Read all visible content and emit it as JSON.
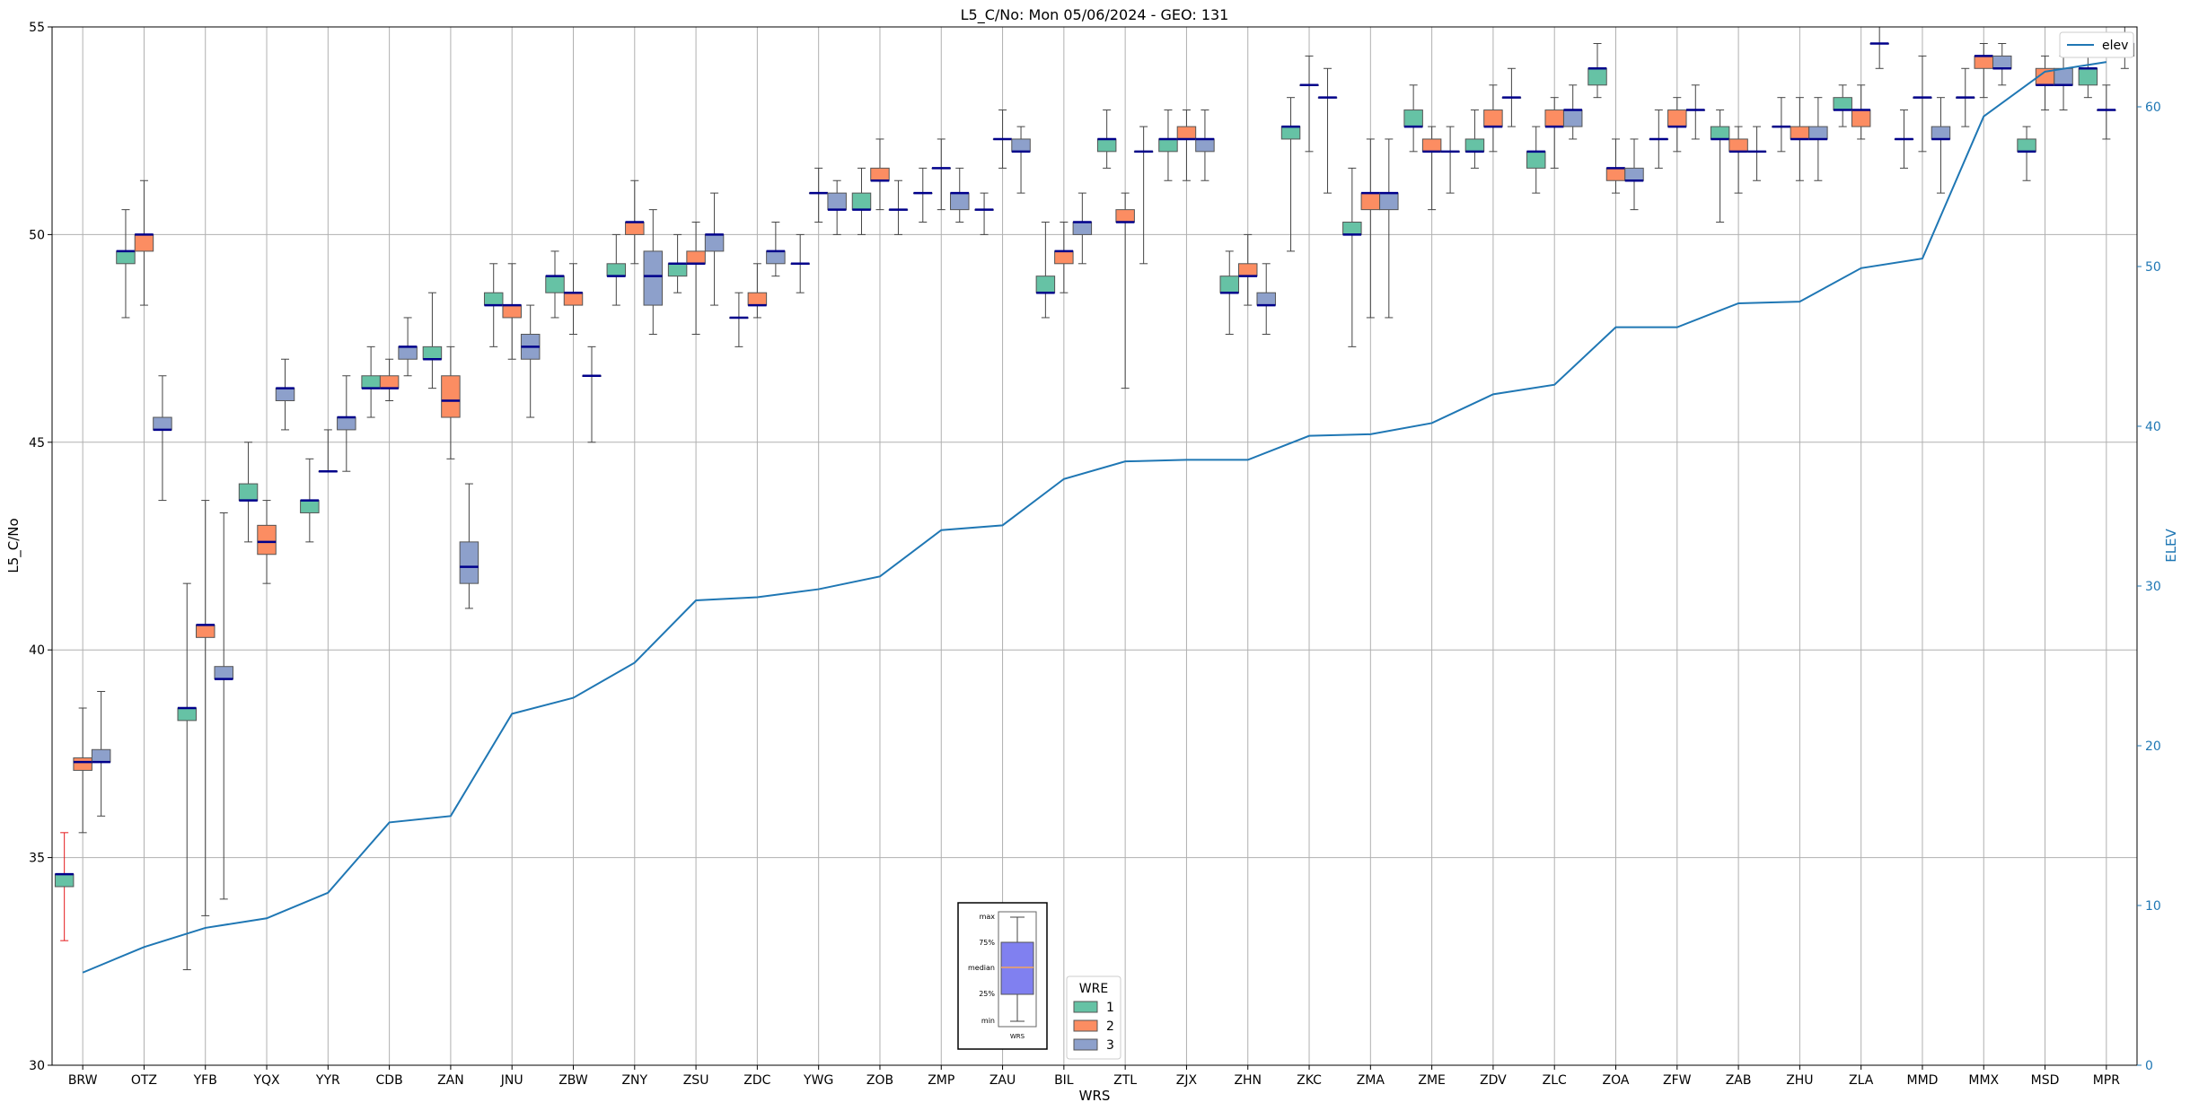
{
  "chart_data": {
    "type": "box",
    "title": "L5_C/No: Mon 05/06/2024 - GEO: 131",
    "xlabel": "WRS",
    "ylabel": "L5_C/No",
    "y2label": "ELEV",
    "ylim": [
      30,
      55
    ],
    "y2lim": [
      0,
      65
    ],
    "yticks": [
      30,
      35,
      40,
      45,
      50,
      55
    ],
    "y2ticks": [
      0,
      10,
      20,
      30,
      40,
      50,
      60
    ],
    "grid": true,
    "colors": {
      "1": "#66c2a5",
      "2": "#fc8d62",
      "3": "#8da0cb",
      "median": "#00008b",
      "elev": "#1f77b4",
      "outlier_whisker": "#e41a1c"
    },
    "categories": [
      "BRW",
      "OTZ",
      "YFB",
      "YQX",
      "YYR",
      "CDB",
      "ZAN",
      "JNU",
      "ZBW",
      "ZNY",
      "ZSU",
      "ZDC",
      "YWG",
      "ZOB",
      "ZMP",
      "ZAU",
      "BIL",
      "ZTL",
      "ZJX",
      "ZHN",
      "ZKC",
      "ZMA",
      "ZME",
      "ZDV",
      "ZLC",
      "ZOA",
      "ZFW",
      "ZAB",
      "ZHU",
      "ZLA",
      "MMD",
      "MMX",
      "MSD",
      "MPR"
    ],
    "legend": {
      "title": "WRE",
      "entries": [
        "1",
        "2",
        "3"
      ]
    },
    "elev_legend": "elev",
    "elev": [
      5.8,
      7.4,
      8.6,
      9.2,
      10.8,
      15.2,
      15.6,
      22.0,
      23.0,
      25.2,
      29.1,
      29.3,
      29.8,
      30.6,
      33.5,
      33.8,
      36.7,
      37.8,
      37.9,
      37.9,
      39.4,
      39.5,
      40.2,
      42.0,
      42.6,
      46.2,
      46.2,
      47.7,
      47.8,
      49.9,
      50.5,
      59.4,
      62.2,
      62.8
    ],
    "boxes": [
      {
        "cat": "BRW",
        "wre": 1,
        "min": 33.0,
        "q1": 34.3,
        "med": 34.6,
        "q3": 34.6,
        "max": 35.6,
        "red": true
      },
      {
        "cat": "BRW",
        "wre": 2,
        "min": 35.6,
        "q1": 37.1,
        "med": 37.3,
        "q3": 37.4,
        "max": 38.6
      },
      {
        "cat": "BRW",
        "wre": 3,
        "min": 36.0,
        "q1": 37.3,
        "med": 37.3,
        "q3": 37.6,
        "max": 39.0
      },
      {
        "cat": "OTZ",
        "wre": 1,
        "min": 48.0,
        "q1": 49.3,
        "med": 49.6,
        "q3": 49.6,
        "max": 50.6
      },
      {
        "cat": "OTZ",
        "wre": 2,
        "min": 48.3,
        "q1": 49.6,
        "med": 50.0,
        "q3": 50.0,
        "max": 51.3
      },
      {
        "cat": "OTZ",
        "wre": 3,
        "min": 43.6,
        "q1": 45.3,
        "med": 45.3,
        "q3": 45.6,
        "max": 46.6
      },
      {
        "cat": "YFB",
        "wre": 1,
        "min": 32.3,
        "q1": 38.3,
        "med": 38.6,
        "q3": 38.6,
        "max": 41.6
      },
      {
        "cat": "YFB",
        "wre": 2,
        "min": 33.6,
        "q1": 40.3,
        "med": 40.6,
        "q3": 40.6,
        "max": 43.6
      },
      {
        "cat": "YFB",
        "wre": 3,
        "min": 34.0,
        "q1": 39.3,
        "med": 39.3,
        "q3": 39.6,
        "max": 43.3
      },
      {
        "cat": "YQX",
        "wre": 1,
        "min": 42.6,
        "q1": 43.6,
        "med": 43.6,
        "q3": 44.0,
        "max": 45.0
      },
      {
        "cat": "YQX",
        "wre": 2,
        "min": 41.6,
        "q1": 42.3,
        "med": 42.6,
        "q3": 43.0,
        "max": 43.6
      },
      {
        "cat": "YQX",
        "wre": 3,
        "min": 45.3,
        "q1": 46.0,
        "med": 46.3,
        "q3": 46.3,
        "max": 47.0
      },
      {
        "cat": "YYR",
        "wre": 1,
        "min": 42.6,
        "q1": 43.3,
        "med": 43.6,
        "q3": 43.6,
        "max": 44.6
      },
      {
        "cat": "YYR",
        "wre": 2,
        "min": 44.3,
        "q1": 44.3,
        "med": 44.3,
        "q3": 44.3,
        "max": 45.3
      },
      {
        "cat": "YYR",
        "wre": 3,
        "min": 44.3,
        "q1": 45.3,
        "med": 45.6,
        "q3": 45.6,
        "max": 46.6
      },
      {
        "cat": "CDB",
        "wre": 1,
        "min": 45.6,
        "q1": 46.3,
        "med": 46.3,
        "q3": 46.6,
        "max": 47.3
      },
      {
        "cat": "CDB",
        "wre": 2,
        "min": 46.0,
        "q1": 46.3,
        "med": 46.3,
        "q3": 46.6,
        "max": 47.0
      },
      {
        "cat": "CDB",
        "wre": 3,
        "min": 46.6,
        "q1": 47.0,
        "med": 47.3,
        "q3": 47.3,
        "max": 48.0
      },
      {
        "cat": "ZAN",
        "wre": 1,
        "min": 46.3,
        "q1": 47.0,
        "med": 47.0,
        "q3": 47.3,
        "max": 48.6
      },
      {
        "cat": "ZAN",
        "wre": 2,
        "min": 44.6,
        "q1": 45.6,
        "med": 46.0,
        "q3": 46.6,
        "max": 47.3
      },
      {
        "cat": "ZAN",
        "wre": 3,
        "min": 41.0,
        "q1": 41.6,
        "med": 42.0,
        "q3": 42.6,
        "max": 44.0
      },
      {
        "cat": "JNU",
        "wre": 1,
        "min": 47.3,
        "q1": 48.3,
        "med": 48.3,
        "q3": 48.6,
        "max": 49.3
      },
      {
        "cat": "JNU",
        "wre": 2,
        "min": 47.0,
        "q1": 48.0,
        "med": 48.3,
        "q3": 48.3,
        "max": 49.3
      },
      {
        "cat": "JNU",
        "wre": 3,
        "min": 45.6,
        "q1": 47.0,
        "med": 47.3,
        "q3": 47.6,
        "max": 48.3
      },
      {
        "cat": "ZBW",
        "wre": 1,
        "min": 48.0,
        "q1": 48.6,
        "med": 49.0,
        "q3": 49.0,
        "max": 49.6
      },
      {
        "cat": "ZBW",
        "wre": 2,
        "min": 47.6,
        "q1": 48.3,
        "med": 48.6,
        "q3": 48.6,
        "max": 49.3
      },
      {
        "cat": "ZBW",
        "wre": 3,
        "min": 45.0,
        "q1": 46.6,
        "med": 46.6,
        "q3": 46.6,
        "max": 47.3
      },
      {
        "cat": "ZNY",
        "wre": 1,
        "min": 48.3,
        "q1": 49.0,
        "med": 49.0,
        "q3": 49.3,
        "max": 50.0
      },
      {
        "cat": "ZNY",
        "wre": 2,
        "min": 49.3,
        "q1": 50.0,
        "med": 50.3,
        "q3": 50.3,
        "max": 51.3
      },
      {
        "cat": "ZNY",
        "wre": 3,
        "min": 47.6,
        "q1": 48.3,
        "med": 49.0,
        "q3": 49.6,
        "max": 50.6
      },
      {
        "cat": "ZSU",
        "wre": 1,
        "min": 48.6,
        "q1": 49.0,
        "med": 49.3,
        "q3": 49.3,
        "max": 50.0
      },
      {
        "cat": "ZSU",
        "wre": 2,
        "min": 47.6,
        "q1": 49.3,
        "med": 49.3,
        "q3": 49.6,
        "max": 50.3
      },
      {
        "cat": "ZSU",
        "wre": 3,
        "min": 48.3,
        "q1": 49.6,
        "med": 50.0,
        "q3": 50.0,
        "max": 51.0
      },
      {
        "cat": "ZDC",
        "wre": 1,
        "min": 47.3,
        "q1": 48.0,
        "med": 48.0,
        "q3": 48.0,
        "max": 48.6
      },
      {
        "cat": "ZDC",
        "wre": 2,
        "min": 48.0,
        "q1": 48.3,
        "med": 48.3,
        "q3": 48.6,
        "max": 49.3
      },
      {
        "cat": "ZDC",
        "wre": 3,
        "min": 49.0,
        "q1": 49.3,
        "med": 49.6,
        "q3": 49.6,
        "max": 50.3
      },
      {
        "cat": "YWG",
        "wre": 1,
        "min": 48.6,
        "q1": 49.3,
        "med": 49.3,
        "q3": 49.3,
        "max": 50.0
      },
      {
        "cat": "YWG",
        "wre": 2,
        "min": 50.3,
        "q1": 51.0,
        "med": 51.0,
        "q3": 51.0,
        "max": 51.6
      },
      {
        "cat": "YWG",
        "wre": 3,
        "min": 50.0,
        "q1": 50.6,
        "med": 50.6,
        "q3": 51.0,
        "max": 51.3
      },
      {
        "cat": "ZOB",
        "wre": 1,
        "min": 50.0,
        "q1": 50.6,
        "med": 50.6,
        "q3": 51.0,
        "max": 51.6
      },
      {
        "cat": "ZOB",
        "wre": 2,
        "min": 50.6,
        "q1": 51.3,
        "med": 51.3,
        "q3": 51.6,
        "max": 52.3
      },
      {
        "cat": "ZOB",
        "wre": 3,
        "min": 50.0,
        "q1": 50.6,
        "med": 50.6,
        "q3": 50.6,
        "max": 51.3
      },
      {
        "cat": "ZMP",
        "wre": 1,
        "min": 50.3,
        "q1": 51.0,
        "med": 51.0,
        "q3": 51.0,
        "max": 51.6
      },
      {
        "cat": "ZMP",
        "wre": 2,
        "min": 50.6,
        "q1": 51.6,
        "med": 51.6,
        "q3": 51.6,
        "max": 52.3
      },
      {
        "cat": "ZMP",
        "wre": 3,
        "min": 50.3,
        "q1": 50.6,
        "med": 51.0,
        "q3": 51.0,
        "max": 51.6
      },
      {
        "cat": "ZAU",
        "wre": 1,
        "min": 50.0,
        "q1": 50.6,
        "med": 50.6,
        "q3": 50.6,
        "max": 51.0
      },
      {
        "cat": "ZAU",
        "wre": 2,
        "min": 51.6,
        "q1": 52.3,
        "med": 52.3,
        "q3": 52.3,
        "max": 53.0
      },
      {
        "cat": "ZAU",
        "wre": 3,
        "min": 51.0,
        "q1": 52.0,
        "med": 52.0,
        "q3": 52.3,
        "max": 52.6
      },
      {
        "cat": "BIL",
        "wre": 1,
        "min": 48.0,
        "q1": 48.6,
        "med": 48.6,
        "q3": 49.0,
        "max": 50.3
      },
      {
        "cat": "BIL",
        "wre": 2,
        "min": 48.6,
        "q1": 49.3,
        "med": 49.6,
        "q3": 49.6,
        "max": 50.3
      },
      {
        "cat": "BIL",
        "wre": 3,
        "min": 49.3,
        "q1": 50.0,
        "med": 50.3,
        "q3": 50.3,
        "max": 51.0
      },
      {
        "cat": "ZTL",
        "wre": 1,
        "min": 51.6,
        "q1": 52.0,
        "med": 52.3,
        "q3": 52.3,
        "max": 53.0
      },
      {
        "cat": "ZTL",
        "wre": 2,
        "min": 46.3,
        "q1": 50.3,
        "med": 50.3,
        "q3": 50.6,
        "max": 51.0
      },
      {
        "cat": "ZTL",
        "wre": 3,
        "min": 49.3,
        "q1": 52.0,
        "med": 52.0,
        "q3": 52.0,
        "max": 52.6
      },
      {
        "cat": "ZJX",
        "wre": 1,
        "min": 51.3,
        "q1": 52.0,
        "med": 52.3,
        "q3": 52.3,
        "max": 53.0
      },
      {
        "cat": "ZJX",
        "wre": 2,
        "min": 51.3,
        "q1": 52.3,
        "med": 52.3,
        "q3": 52.6,
        "max": 53.0
      },
      {
        "cat": "ZJX",
        "wre": 3,
        "min": 51.3,
        "q1": 52.0,
        "med": 52.3,
        "q3": 52.3,
        "max": 53.0
      },
      {
        "cat": "ZHN",
        "wre": 1,
        "min": 47.6,
        "q1": 48.6,
        "med": 48.6,
        "q3": 49.0,
        "max": 49.6
      },
      {
        "cat": "ZHN",
        "wre": 2,
        "min": 48.3,
        "q1": 49.0,
        "med": 49.0,
        "q3": 49.3,
        "max": 50.0
      },
      {
        "cat": "ZHN",
        "wre": 3,
        "min": 47.6,
        "q1": 48.3,
        "med": 48.3,
        "q3": 48.6,
        "max": 49.3
      },
      {
        "cat": "ZKC",
        "wre": 1,
        "min": 49.6,
        "q1": 52.3,
        "med": 52.6,
        "q3": 52.6,
        "max": 53.3
      },
      {
        "cat": "ZKC",
        "wre": 2,
        "min": 52.0,
        "q1": 53.6,
        "med": 53.6,
        "q3": 53.6,
        "max": 54.3
      },
      {
        "cat": "ZKC",
        "wre": 3,
        "min": 51.0,
        "q1": 53.3,
        "med": 53.3,
        "q3": 53.3,
        "max": 54.0
      },
      {
        "cat": "ZMA",
        "wre": 1,
        "min": 47.3,
        "q1": 50.0,
        "med": 50.0,
        "q3": 50.3,
        "max": 51.6
      },
      {
        "cat": "ZMA",
        "wre": 2,
        "min": 48.0,
        "q1": 50.6,
        "med": 51.0,
        "q3": 51.0,
        "max": 52.3
      },
      {
        "cat": "ZMA",
        "wre": 3,
        "min": 48.0,
        "q1": 50.6,
        "med": 51.0,
        "q3": 51.0,
        "max": 52.3
      },
      {
        "cat": "ZME",
        "wre": 1,
        "min": 52.0,
        "q1": 52.6,
        "med": 52.6,
        "q3": 53.0,
        "max": 53.6
      },
      {
        "cat": "ZME",
        "wre": 2,
        "min": 50.6,
        "q1": 52.0,
        "med": 52.0,
        "q3": 52.3,
        "max": 52.6
      },
      {
        "cat": "ZME",
        "wre": 3,
        "min": 51.0,
        "q1": 52.0,
        "med": 52.0,
        "q3": 52.0,
        "max": 52.6
      },
      {
        "cat": "ZDV",
        "wre": 1,
        "min": 51.6,
        "q1": 52.0,
        "med": 52.0,
        "q3": 52.3,
        "max": 53.0
      },
      {
        "cat": "ZDV",
        "wre": 2,
        "min": 52.0,
        "q1": 52.6,
        "med": 52.6,
        "q3": 53.0,
        "max": 53.6
      },
      {
        "cat": "ZDV",
        "wre": 3,
        "min": 52.6,
        "q1": 53.3,
        "med": 53.3,
        "q3": 53.3,
        "max": 54.0
      },
      {
        "cat": "ZLC",
        "wre": 1,
        "min": 51.0,
        "q1": 51.6,
        "med": 52.0,
        "q3": 52.0,
        "max": 52.6
      },
      {
        "cat": "ZLC",
        "wre": 2,
        "min": 51.6,
        "q1": 52.6,
        "med": 52.6,
        "q3": 53.0,
        "max": 53.3
      },
      {
        "cat": "ZLC",
        "wre": 3,
        "min": 52.3,
        "q1": 52.6,
        "med": 53.0,
        "q3": 53.0,
        "max": 53.6
      },
      {
        "cat": "ZOA",
        "wre": 1,
        "min": 53.3,
        "q1": 53.6,
        "med": 54.0,
        "q3": 54.0,
        "max": 54.6
      },
      {
        "cat": "ZOA",
        "wre": 2,
        "min": 51.0,
        "q1": 51.3,
        "med": 51.6,
        "q3": 51.6,
        "max": 52.3
      },
      {
        "cat": "ZOA",
        "wre": 3,
        "min": 50.6,
        "q1": 51.3,
        "med": 51.3,
        "q3": 51.6,
        "max": 52.3
      },
      {
        "cat": "ZFW",
        "wre": 1,
        "min": 51.6,
        "q1": 52.3,
        "med": 52.3,
        "q3": 52.3,
        "max": 53.0
      },
      {
        "cat": "ZFW",
        "wre": 2,
        "min": 52.0,
        "q1": 52.6,
        "med": 52.6,
        "q3": 53.0,
        "max": 53.3
      },
      {
        "cat": "ZFW",
        "wre": 3,
        "min": 52.3,
        "q1": 53.0,
        "med": 53.0,
        "q3": 53.0,
        "max": 53.6
      },
      {
        "cat": "ZAB",
        "wre": 1,
        "min": 50.3,
        "q1": 52.3,
        "med": 52.3,
        "q3": 52.6,
        "max": 53.0
      },
      {
        "cat": "ZAB",
        "wre": 2,
        "min": 51.0,
        "q1": 52.0,
        "med": 52.0,
        "q3": 52.3,
        "max": 52.6
      },
      {
        "cat": "ZAB",
        "wre": 3,
        "min": 51.3,
        "q1": 52.0,
        "med": 52.0,
        "q3": 52.0,
        "max": 52.6
      },
      {
        "cat": "ZHU",
        "wre": 1,
        "min": 52.0,
        "q1": 52.6,
        "med": 52.6,
        "q3": 52.6,
        "max": 53.3
      },
      {
        "cat": "ZHU",
        "wre": 2,
        "min": 51.3,
        "q1": 52.3,
        "med": 52.3,
        "q3": 52.6,
        "max": 53.3
      },
      {
        "cat": "ZHU",
        "wre": 3,
        "min": 51.3,
        "q1": 52.3,
        "med": 52.3,
        "q3": 52.6,
        "max": 53.3
      },
      {
        "cat": "ZLA",
        "wre": 1,
        "min": 52.6,
        "q1": 53.0,
        "med": 53.0,
        "q3": 53.3,
        "max": 53.6
      },
      {
        "cat": "ZLA",
        "wre": 2,
        "min": 52.3,
        "q1": 52.6,
        "med": 53.0,
        "q3": 53.0,
        "max": 53.6
      },
      {
        "cat": "ZLA",
        "wre": 3,
        "min": 54.0,
        "q1": 54.6,
        "med": 54.6,
        "q3": 54.6,
        "max": 55.0
      },
      {
        "cat": "MMD",
        "wre": 1,
        "min": 51.6,
        "q1": 52.3,
        "med": 52.3,
        "q3": 52.3,
        "max": 53.0
      },
      {
        "cat": "MMD",
        "wre": 2,
        "min": 52.0,
        "q1": 53.3,
        "med": 53.3,
        "q3": 53.3,
        "max": 54.3
      },
      {
        "cat": "MMD",
        "wre": 3,
        "min": 51.0,
        "q1": 52.3,
        "med": 52.3,
        "q3": 52.6,
        "max": 53.3
      },
      {
        "cat": "MMX",
        "wre": 1,
        "min": 52.6,
        "q1": 53.3,
        "med": 53.3,
        "q3": 53.3,
        "max": 54.0
      },
      {
        "cat": "MMX",
        "wre": 2,
        "min": 53.3,
        "q1": 54.0,
        "med": 54.3,
        "q3": 54.3,
        "max": 54.6
      },
      {
        "cat": "MMX",
        "wre": 3,
        "min": 53.6,
        "q1": 54.0,
        "med": 54.0,
        "q3": 54.3,
        "max": 54.6
      },
      {
        "cat": "MSD",
        "wre": 1,
        "min": 51.3,
        "q1": 52.0,
        "med": 52.0,
        "q3": 52.3,
        "max": 52.6
      },
      {
        "cat": "MSD",
        "wre": 2,
        "min": 53.0,
        "q1": 53.6,
        "med": 53.6,
        "q3": 54.0,
        "max": 54.3
      },
      {
        "cat": "MSD",
        "wre": 3,
        "min": 53.0,
        "q1": 53.6,
        "med": 53.6,
        "q3": 54.0,
        "max": 54.3
      },
      {
        "cat": "MPR",
        "wre": 1,
        "min": 53.3,
        "q1": 53.6,
        "med": 54.0,
        "q3": 54.0,
        "max": 54.3
      },
      {
        "cat": "MPR",
        "wre": 2,
        "min": 52.3,
        "q1": 53.0,
        "med": 53.0,
        "q3": 53.0,
        "max": 53.6
      },
      {
        "cat": "MPR",
        "wre": 3,
        "min": 54.0,
        "q1": 54.3,
        "med": 54.6,
        "q3": 54.6,
        "max": 55.0
      }
    ],
    "key_box_labels": [
      "max",
      "75%",
      "median",
      "25%",
      "min",
      "WRS"
    ]
  }
}
